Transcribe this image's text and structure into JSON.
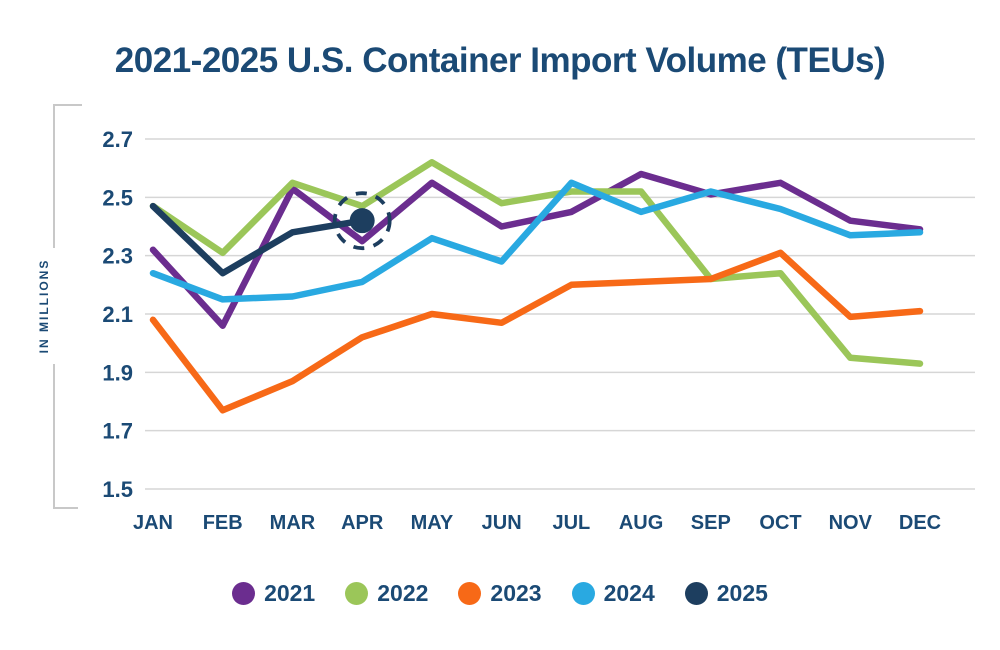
{
  "page": {
    "background": "#ffffff",
    "text_color": "#1B4A75"
  },
  "chart": {
    "title": "2021-2025 U.S. Container Import Volume (TEUs)",
    "gridline_color": "#D6D6D6",
    "bracket_color": "#C8C8C8"
  },
  "chart_data": {
    "type": "line",
    "title": "2021-2025 U.S. Container Import Volume (TEUs)",
    "xlabel": "",
    "ylabel": "IN MILLIONS",
    "categories": [
      "JAN",
      "FEB",
      "MAR",
      "APR",
      "MAY",
      "JUN",
      "JUL",
      "AUG",
      "SEP",
      "OCT",
      "NOV",
      "DEC"
    ],
    "yticks": [
      2.7,
      2.5,
      2.3,
      2.1,
      1.9,
      1.7,
      1.5
    ],
    "ylim": [
      1.5,
      2.7
    ],
    "grid": true,
    "legend_position": "bottom",
    "series": [
      {
        "name": "2021",
        "color": "#6B2D8F",
        "values": [
          2.32,
          2.06,
          2.53,
          2.35,
          2.55,
          2.4,
          2.45,
          2.58,
          2.51,
          2.55,
          2.42,
          2.39
        ]
      },
      {
        "name": "2022",
        "color": "#9BC659",
        "values": [
          2.47,
          2.31,
          2.55,
          2.47,
          2.62,
          2.48,
          2.52,
          2.52,
          2.22,
          2.24,
          1.95,
          1.93
        ]
      },
      {
        "name": "2023",
        "color": "#F76917",
        "values": [
          2.08,
          1.77,
          1.87,
          2.02,
          2.1,
          2.07,
          2.2,
          2.21,
          2.22,
          2.31,
          2.09,
          2.11
        ]
      },
      {
        "name": "2024",
        "color": "#29A9E1",
        "values": [
          2.24,
          2.15,
          2.16,
          2.21,
          2.36,
          2.28,
          2.55,
          2.45,
          2.52,
          2.46,
          2.37,
          2.38
        ]
      },
      {
        "name": "2025",
        "color": "#1D3E5F",
        "values": [
          2.47,
          2.24,
          2.38,
          2.42,
          null,
          null,
          null,
          null,
          null,
          null,
          null,
          null
        ]
      }
    ],
    "highlight": {
      "series": "2025",
      "category": "APR",
      "value": 2.42,
      "style": "dashed-circle"
    }
  }
}
